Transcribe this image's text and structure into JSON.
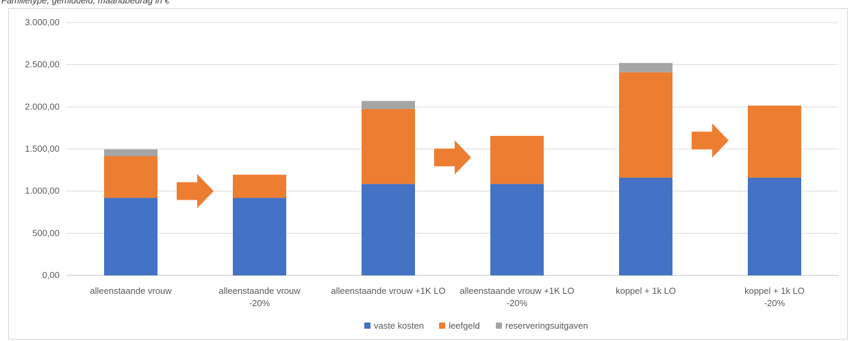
{
  "caption": "Familietype, gemiddeld, maandbedrag in €",
  "chart_data": {
    "type": "bar",
    "stacked": true,
    "categories": [
      [
        "alleenstaande vrouw"
      ],
      [
        "alleenstaande vrouw",
        "-20%"
      ],
      [
        "alleenstaande vrouw +1K LO"
      ],
      [
        "alleenstaande vrouw +1K LO",
        "-20%"
      ],
      [
        "koppel + 1k LO"
      ],
      [
        "koppel + 1k LO",
        "-20%"
      ]
    ],
    "series": [
      {
        "name": "vaste kosten",
        "color": "#4472c4",
        "values": [
          920,
          920,
          1085,
          1085,
          1160,
          1160
        ]
      },
      {
        "name": "leefgeld",
        "color": "#ed7d31",
        "values": [
          495,
          275,
          890,
          570,
          1250,
          855
        ]
      },
      {
        "name": "reserveringsuitgaven",
        "color": "#a5a5a5",
        "values": [
          80,
          0,
          95,
          0,
          110,
          0
        ]
      }
    ],
    "ylim": [
      0,
      3000
    ],
    "yticks": [
      0,
      500,
      1000,
      1500,
      2000,
      2500,
      3000
    ],
    "ytick_labels": [
      "0,00",
      "500,00",
      "1.000,00",
      "1.500,00",
      "2.000,00",
      "2.500,00",
      "3.000,00"
    ],
    "grid": true,
    "legend_position": "bottom",
    "annotations": [
      {
        "type": "arrow",
        "color": "#ed7d31",
        "between": [
          0,
          1
        ],
        "y": 1000
      },
      {
        "type": "arrow",
        "color": "#ed7d31",
        "between": [
          2,
          3
        ],
        "y": 1400
      },
      {
        "type": "arrow",
        "color": "#ed7d31",
        "between": [
          4,
          5
        ],
        "y": 1600
      }
    ]
  }
}
